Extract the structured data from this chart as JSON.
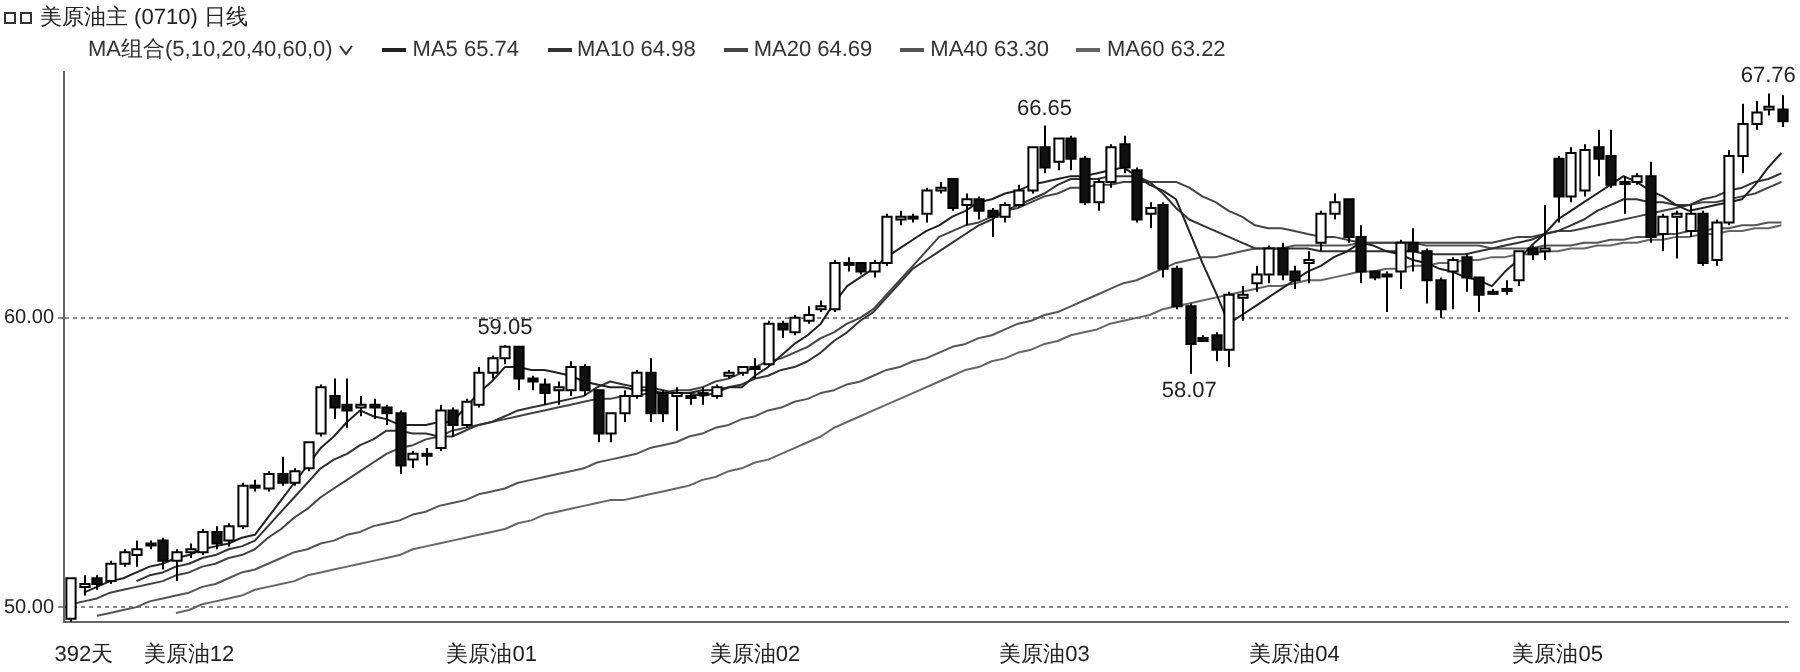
{
  "chart_data": {
    "type": "candlestick",
    "title": "美原油主 (0710) 日线",
    "subtitle": "MA组合(5,10,20,40,60,0)",
    "legend": "top left",
    "grid": "y",
    "categories": [
      null,
      "392天",
      null,
      null,
      null,
      null,
      null,
      null,
      null,
      "美原油12",
      null,
      null,
      null,
      null,
      null,
      null,
      null,
      null,
      null,
      null,
      null,
      null,
      null,
      null,
      null,
      null,
      null,
      null,
      null,
      null,
      null,
      null,
      "美原油01",
      null,
      null,
      null,
      null,
      null,
      null,
      null,
      null,
      null,
      null,
      null,
      null,
      null,
      null,
      null,
      null,
      null,
      null,
      null,
      "美原油02",
      null,
      null,
      null,
      null,
      null,
      null,
      null,
      null,
      null,
      null,
      null,
      null,
      null,
      null,
      null,
      null,
      null,
      null,
      null,
      null,
      null,
      "美原油03",
      null,
      null,
      null,
      null,
      null,
      null,
      null,
      null,
      null,
      null,
      null,
      null,
      null,
      null,
      null,
      null,
      null,
      null,
      "美原油04",
      null,
      null,
      null,
      null,
      null,
      null,
      null,
      null,
      null,
      null,
      null,
      null,
      null,
      null,
      null,
      null,
      null,
      null,
      null,
      "美原油05",
      null,
      null,
      null,
      null,
      null,
      null,
      null,
      null,
      null,
      null,
      null,
      null,
      null,
      null,
      null,
      null,
      null
    ],
    "ylim": [
      49.5,
      68.5
    ],
    "yticks": [
      {
        "value": 50,
        "label": "50.00"
      },
      {
        "value": 60,
        "label": "60.00"
      }
    ],
    "ohlc": [
      [
        49.6,
        51.0,
        49.5,
        51.0
      ],
      [
        50.7,
        51.1,
        50.4,
        50.8
      ],
      [
        51.0,
        51.1,
        50.6,
        50.8
      ],
      [
        50.9,
        51.6,
        50.8,
        51.5
      ],
      [
        51.5,
        52.0,
        51.4,
        51.9
      ],
      [
        51.8,
        52.3,
        51.4,
        52.0
      ],
      [
        52.2,
        52.3,
        52.0,
        52.2
      ],
      [
        52.3,
        52.4,
        51.3,
        51.6
      ],
      [
        51.6,
        52.0,
        50.9,
        51.9
      ],
      [
        51.9,
        52.2,
        51.7,
        52.0
      ],
      [
        51.9,
        52.7,
        51.8,
        52.6
      ],
      [
        52.6,
        52.8,
        52.0,
        52.2
      ],
      [
        52.3,
        52.9,
        52.1,
        52.8
      ],
      [
        52.8,
        54.3,
        52.7,
        54.2
      ],
      [
        54.2,
        54.4,
        54.0,
        54.2
      ],
      [
        54.1,
        54.7,
        54.0,
        54.6
      ],
      [
        54.6,
        55.2,
        54.2,
        54.3
      ],
      [
        54.3,
        54.8,
        54.2,
        54.7
      ],
      [
        54.8,
        55.7,
        54.7,
        55.7
      ],
      [
        56.0,
        57.7,
        55.9,
        57.6
      ],
      [
        57.3,
        57.9,
        56.5,
        56.9
      ],
      [
        57.0,
        57.9,
        56.2,
        56.8
      ],
      [
        56.9,
        57.3,
        56.6,
        57.0
      ],
      [
        57.0,
        57.2,
        56.5,
        56.9
      ],
      [
        56.9,
        57.0,
        56.3,
        56.7
      ],
      [
        56.7,
        56.8,
        54.6,
        54.9
      ],
      [
        55.1,
        55.4,
        54.8,
        55.3
      ],
      [
        55.3,
        55.5,
        54.9,
        55.3
      ],
      [
        55.5,
        57.0,
        55.4,
        56.8
      ],
      [
        56.8,
        56.9,
        55.9,
        56.3
      ],
      [
        56.3,
        57.2,
        56.2,
        57.1
      ],
      [
        57.0,
        58.3,
        56.9,
        58.1
      ],
      [
        58.1,
        58.7,
        57.9,
        58.6
      ],
      [
        58.6,
        59.05,
        58.4,
        59.0
      ],
      [
        59.0,
        59.0,
        57.5,
        57.9
      ],
      [
        57.9,
        58.0,
        57.5,
        57.8
      ],
      [
        57.7,
        57.9,
        57.0,
        57.4
      ],
      [
        57.5,
        57.8,
        57.0,
        57.6
      ],
      [
        57.5,
        58.5,
        57.3,
        58.3
      ],
      [
        58.3,
        58.4,
        57.3,
        57.5
      ],
      [
        57.5,
        57.5,
        55.7,
        56.0
      ],
      [
        56.0,
        56.7,
        55.7,
        56.7
      ],
      [
        56.7,
        57.5,
        56.4,
        57.3
      ],
      [
        57.3,
        58.2,
        57.2,
        58.1
      ],
      [
        58.1,
        58.6,
        56.4,
        56.7
      ],
      [
        57.4,
        57.5,
        56.4,
        56.7
      ],
      [
        57.3,
        57.6,
        56.1,
        57.4
      ],
      [
        57.3,
        57.4,
        57.0,
        57.3
      ],
      [
        57.4,
        57.6,
        57.0,
        57.4
      ],
      [
        57.3,
        57.7,
        57.2,
        57.6
      ],
      [
        58.0,
        58.2,
        57.9,
        58.1
      ],
      [
        58.1,
        58.3,
        58.0,
        58.3
      ],
      [
        58.3,
        58.6,
        57.9,
        58.3
      ],
      [
        58.4,
        59.9,
        58.3,
        59.8
      ],
      [
        59.8,
        59.9,
        59.3,
        59.6
      ],
      [
        59.5,
        60.1,
        59.4,
        60.0
      ],
      [
        59.9,
        60.4,
        59.8,
        60.1
      ],
      [
        60.3,
        60.6,
        60.2,
        60.4
      ],
      [
        60.3,
        62.0,
        60.2,
        61.9
      ],
      [
        61.9,
        62.1,
        61.6,
        61.9
      ],
      [
        61.9,
        61.9,
        61.5,
        61.6
      ],
      [
        61.6,
        62.0,
        61.4,
        61.9
      ],
      [
        61.9,
        63.6,
        61.8,
        63.5
      ],
      [
        63.4,
        63.7,
        63.2,
        63.5
      ],
      [
        63.5,
        63.6,
        63.3,
        63.5
      ],
      [
        63.6,
        64.5,
        63.3,
        64.4
      ],
      [
        64.4,
        64.7,
        64.3,
        64.5
      ],
      [
        64.8,
        64.8,
        63.7,
        63.8
      ],
      [
        63.9,
        64.3,
        63.2,
        64.1
      ],
      [
        64.1,
        64.2,
        63.4,
        63.7
      ],
      [
        63.7,
        63.8,
        62.8,
        63.5
      ],
      [
        63.5,
        64.0,
        63.3,
        63.9
      ],
      [
        63.9,
        64.6,
        63.8,
        64.4
      ],
      [
        64.4,
        65.9,
        64.3,
        65.9
      ],
      [
        65.9,
        66.65,
        65.0,
        65.2
      ],
      [
        65.4,
        66.2,
        65.1,
        66.2
      ],
      [
        66.2,
        66.3,
        65.1,
        65.5
      ],
      [
        65.5,
        65.6,
        63.9,
        64.0
      ],
      [
        64.0,
        64.8,
        63.7,
        64.7
      ],
      [
        64.7,
        66.0,
        64.5,
        65.9
      ],
      [
        66.0,
        66.3,
        65.0,
        65.2
      ],
      [
        65.1,
        65.2,
        63.3,
        63.4
      ],
      [
        63.6,
        64.0,
        63.1,
        63.8
      ],
      [
        63.9,
        64.0,
        61.4,
        61.7
      ],
      [
        61.7,
        61.8,
        60.3,
        60.4
      ],
      [
        60.4,
        60.5,
        58.07,
        59.1
      ],
      [
        59.3,
        59.4,
        59.2,
        59.2
      ],
      [
        59.4,
        59.5,
        58.5,
        58.9
      ],
      [
        58.9,
        60.9,
        58.3,
        60.8
      ],
      [
        60.7,
        61.1,
        59.9,
        60.8
      ],
      [
        61.2,
        61.8,
        60.9,
        61.5
      ],
      [
        61.5,
        62.5,
        61.2,
        62.4
      ],
      [
        62.4,
        62.6,
        61.3,
        61.5
      ],
      [
        61.6,
        61.8,
        61.0,
        61.3
      ],
      [
        61.9,
        62.3,
        61.2,
        62.0
      ],
      [
        62.6,
        63.7,
        62.3,
        63.6
      ],
      [
        63.6,
        64.3,
        63.4,
        64.0
      ],
      [
        64.1,
        64.1,
        62.6,
        62.8
      ],
      [
        62.8,
        63.2,
        61.2,
        61.6
      ],
      [
        61.6,
        61.6,
        61.3,
        61.4
      ],
      [
        61.5,
        61.6,
        60.2,
        61.5
      ],
      [
        61.6,
        62.7,
        61.0,
        62.6
      ],
      [
        62.6,
        63.1,
        61.6,
        62.3
      ],
      [
        62.3,
        62.4,
        60.5,
        61.3
      ],
      [
        61.3,
        61.4,
        60.0,
        60.3
      ],
      [
        61.6,
        62.1,
        60.3,
        62.0
      ],
      [
        62.1,
        62.2,
        60.9,
        61.4
      ],
      [
        61.4,
        61.4,
        60.2,
        60.8
      ],
      [
        60.9,
        61.0,
        60.8,
        60.9
      ],
      [
        61.0,
        61.3,
        60.8,
        61.0
      ],
      [
        61.3,
        62.3,
        61.1,
        62.3
      ],
      [
        62.4,
        62.5,
        62.0,
        62.2
      ],
      [
        62.3,
        63.9,
        62.0,
        62.4
      ],
      [
        65.5,
        65.6,
        63.3,
        64.2
      ],
      [
        64.2,
        65.9,
        64.0,
        65.7
      ],
      [
        64.4,
        66.0,
        64.2,
        65.8
      ],
      [
        65.9,
        66.5,
        64.9,
        65.5
      ],
      [
        65.6,
        66.5,
        64.5,
        64.6
      ],
      [
        64.7,
        64.9,
        63.6,
        64.7
      ],
      [
        64.7,
        65.0,
        64.6,
        64.9
      ],
      [
        64.9,
        65.4,
        62.6,
        62.8
      ],
      [
        62.9,
        63.6,
        62.3,
        63.5
      ],
      [
        63.5,
        63.7,
        62.05,
        63.6
      ],
      [
        63.0,
        63.9,
        62.8,
        63.6
      ],
      [
        63.6,
        63.7,
        61.8,
        61.9
      ],
      [
        62.0,
        63.4,
        61.8,
        63.3
      ],
      [
        63.3,
        65.8,
        63.2,
        65.6
      ],
      [
        65.6,
        67.4,
        65.0,
        66.7
      ],
      [
        66.7,
        67.5,
        66.5,
        67.1
      ],
      [
        67.2,
        67.76,
        67.0,
        67.3
      ],
      [
        67.2,
        67.7,
        66.6,
        66.8
      ]
    ],
    "series": [
      {
        "name": "MA5 65.74",
        "type": "line",
        "color": "#222222",
        "values": [
          null,
          50.5,
          50.7,
          50.9,
          51.0,
          51.2,
          51.4,
          51.5,
          51.7,
          51.8,
          52.0,
          52.1,
          52.2,
          52.4,
          52.5,
          53.1,
          53.7,
          54.3,
          54.9,
          55.5,
          55.9,
          56.4,
          56.8,
          56.6,
          56.5,
          56.3,
          56.3,
          56.3,
          56.4,
          56.4,
          56.9,
          57.4,
          57.8,
          58.3,
          58.3,
          58.2,
          58.2,
          58.1,
          58.0,
          57.8,
          57.7,
          57.6,
          57.6,
          57.5,
          57.5,
          57.4,
          57.4,
          57.4,
          57.5,
          57.5,
          57.6,
          57.6,
          58.0,
          58.3,
          58.7,
          59.1,
          59.4,
          59.8,
          60.5,
          61.1,
          61.4,
          61.7,
          62.1,
          62.4,
          62.7,
          63.0,
          63.2,
          63.5,
          63.7,
          64.0,
          64.1,
          64.3,
          64.4,
          64.6,
          64.7,
          64.8,
          64.9,
          64.9,
          65.0,
          65.1,
          65.2,
          64.9,
          64.6,
          64.4,
          64.1,
          63.0,
          61.9,
          60.9,
          59.8,
          60.1,
          60.4,
          60.7,
          61.0,
          61.3,
          61.6,
          61.8,
          62.1,
          62.3,
          62.6,
          62.5,
          62.3,
          62.2,
          62.0,
          61.9,
          61.7,
          61.6,
          61.4,
          61.3,
          61.1,
          61.6,
          62.0,
          62.5,
          62.9,
          63.4,
          63.7,
          64.0,
          64.3,
          64.6,
          64.9,
          64.7,
          64.4,
          64.2,
          63.9,
          63.7,
          63.8,
          63.9,
          64.0,
          64.1,
          64.6,
          65.2,
          65.7
        ]
      },
      {
        "name": "MA10 64.98",
        "type": "line",
        "color": "#333333",
        "values": [
          null,
          null,
          null,
          null,
          null,
          50.9,
          51.1,
          51.2,
          51.4,
          51.5,
          51.7,
          51.8,
          52.0,
          52.1,
          52.3,
          52.8,
          53.3,
          53.8,
          54.3,
          54.8,
          55.1,
          55.3,
          55.6,
          55.8,
          56.1,
          56.1,
          56.0,
          56.0,
          55.9,
          55.9,
          56.1,
          56.3,
          56.4,
          56.6,
          56.8,
          56.9,
          57.0,
          57.1,
          57.2,
          57.3,
          57.6,
          57.8,
          57.7,
          57.6,
          57.6,
          57.5,
          57.4,
          57.4,
          57.3,
          57.4,
          57.6,
          57.7,
          57.9,
          58.0,
          58.2,
          58.3,
          58.5,
          58.8,
          59.2,
          59.5,
          59.9,
          60.2,
          60.7,
          61.2,
          61.7,
          62.0,
          62.3,
          62.6,
          62.9,
          63.2,
          63.4,
          63.7,
          63.9,
          64.1,
          64.3,
          64.6,
          64.8,
          64.8,
          64.8,
          64.9,
          64.9,
          64.9,
          64.7,
          64.3,
          63.8,
          63.4,
          63.2,
          63.0,
          62.8,
          62.6,
          62.4,
          62.4,
          62.4,
          62.4,
          62.4,
          62.3,
          62.3,
          62.3,
          62.3,
          62.3,
          62.3,
          62.3,
          62.3,
          62.2,
          62.2,
          62.2,
          62.2,
          62.3,
          62.4,
          62.5,
          62.6,
          62.7,
          62.9,
          63.0,
          63.2,
          63.4,
          63.7,
          63.9,
          64.1,
          64.1,
          64.0,
          64.0,
          63.9,
          63.9,
          64.1,
          64.2,
          64.4,
          64.5,
          64.7,
          64.8,
          65.0
        ]
      },
      {
        "name": "MA20 64.69",
        "type": "line",
        "color": "#444444",
        "values": [
          50.1,
          50.2,
          50.3,
          50.5,
          50.6,
          50.7,
          50.8,
          50.9,
          51.1,
          51.2,
          51.4,
          51.5,
          51.7,
          51.8,
          52.0,
          52.4,
          52.7,
          53.1,
          53.4,
          53.8,
          54.1,
          54.4,
          54.7,
          55.0,
          55.3,
          55.5,
          55.6,
          55.8,
          55.9,
          56.1,
          56.2,
          56.3,
          56.4,
          56.5,
          56.6,
          56.7,
          56.8,
          56.9,
          57.0,
          57.1,
          57.2,
          57.2,
          57.3,
          57.3,
          57.4,
          57.4,
          57.5,
          57.5,
          57.6,
          57.8,
          57.9,
          58.1,
          58.3,
          58.5,
          58.6,
          58.8,
          59.0,
          59.3,
          59.5,
          59.8,
          60.0,
          60.3,
          60.8,
          61.3,
          61.8,
          62.3,
          62.8,
          63.0,
          63.2,
          63.3,
          63.5,
          63.7,
          63.8,
          64.0,
          64.2,
          64.3,
          64.5,
          64.5,
          64.6,
          64.6,
          64.7,
          64.7,
          64.7,
          64.7,
          64.7,
          64.5,
          64.2,
          64.0,
          63.7,
          63.5,
          63.2,
          63.1,
          63.1,
          63.0,
          62.9,
          62.8,
          62.8,
          62.7,
          62.6,
          62.6,
          62.6,
          62.6,
          62.6,
          62.6,
          62.6,
          62.6,
          62.6,
          62.6,
          62.6,
          62.7,
          62.8,
          62.8,
          62.9,
          63.0,
          63.0,
          63.1,
          63.2,
          63.3,
          63.4,
          63.5,
          63.6,
          63.7,
          63.8,
          63.9,
          64.0,
          64.0,
          64.1,
          64.2,
          64.3,
          64.5,
          64.7
        ]
      },
      {
        "name": "MA40 63.30",
        "type": "line",
        "color": "#555555",
        "values": [
          null,
          null,
          49.7,
          49.8,
          49.9,
          50.0,
          50.2,
          50.3,
          50.4,
          50.5,
          50.7,
          50.8,
          51.0,
          51.2,
          51.3,
          51.5,
          51.7,
          51.9,
          52.0,
          52.2,
          52.3,
          52.5,
          52.6,
          52.8,
          52.9,
          53.0,
          53.2,
          53.3,
          53.5,
          53.6,
          53.7,
          53.9,
          54.0,
          54.1,
          54.3,
          54.4,
          54.5,
          54.6,
          54.7,
          54.8,
          55.0,
          55.1,
          55.2,
          55.3,
          55.5,
          55.6,
          55.7,
          55.9,
          56.0,
          56.2,
          56.3,
          56.5,
          56.6,
          56.8,
          56.9,
          57.1,
          57.2,
          57.4,
          57.5,
          57.7,
          57.8,
          58.0,
          58.2,
          58.3,
          58.5,
          58.6,
          58.8,
          59.0,
          59.1,
          59.3,
          59.4,
          59.6,
          59.8,
          59.9,
          60.1,
          60.2,
          60.4,
          60.6,
          60.8,
          61.0,
          61.2,
          61.3,
          61.5,
          61.7,
          61.9,
          62.0,
          62.1,
          62.1,
          62.2,
          62.3,
          62.4,
          62.4,
          62.4,
          62.5,
          62.5,
          62.5,
          62.5,
          62.5,
          62.6,
          62.6,
          62.6,
          62.6,
          62.6,
          62.5,
          62.5,
          62.5,
          62.5,
          62.5,
          62.4,
          62.4,
          62.4,
          62.4,
          62.5,
          62.5,
          62.5,
          62.6,
          62.6,
          62.7,
          62.7,
          62.8,
          62.8,
          62.9,
          62.9,
          63.0,
          63.0,
          63.1,
          63.1,
          63.2,
          63.2,
          63.3,
          63.3
        ]
      },
      {
        "name": "MA60 63.22",
        "type": "line",
        "color": "#666666",
        "values": [
          null,
          null,
          null,
          null,
          null,
          null,
          null,
          null,
          49.8,
          49.9,
          50.1,
          50.2,
          50.3,
          50.4,
          50.6,
          50.7,
          50.8,
          50.9,
          51.1,
          51.2,
          51.3,
          51.4,
          51.5,
          51.6,
          51.7,
          51.8,
          52.0,
          52.1,
          52.2,
          52.3,
          52.4,
          52.5,
          52.6,
          52.7,
          52.9,
          53.0,
          53.2,
          53.3,
          53.4,
          53.5,
          53.6,
          53.7,
          53.7,
          53.8,
          53.9,
          54.0,
          54.1,
          54.2,
          54.4,
          54.5,
          54.7,
          54.8,
          55.0,
          55.1,
          55.3,
          55.5,
          55.7,
          55.9,
          56.2,
          56.4,
          56.6,
          56.8,
          57.0,
          57.2,
          57.4,
          57.6,
          57.8,
          58.0,
          58.2,
          58.3,
          58.5,
          58.6,
          58.8,
          58.9,
          59.1,
          59.2,
          59.4,
          59.5,
          59.6,
          59.8,
          59.9,
          60.0,
          60.1,
          60.3,
          60.4,
          60.5,
          60.6,
          60.7,
          60.8,
          60.9,
          61.0,
          61.1,
          61.1,
          61.2,
          61.3,
          61.3,
          61.4,
          61.5,
          61.6,
          61.6,
          61.7,
          61.7,
          61.8,
          61.8,
          61.9,
          61.9,
          62.0,
          62.0,
          62.1,
          62.1,
          62.2,
          62.2,
          62.3,
          62.3,
          62.4,
          62.4,
          62.5,
          62.5,
          62.6,
          62.6,
          62.7,
          62.7,
          62.8,
          62.8,
          62.9,
          62.9,
          63.0,
          63.0,
          63.1,
          63.1,
          63.2
        ]
      }
    ],
    "annotations": [
      {
        "text": "59.05",
        "y": 59.05
      },
      {
        "text": "66.65",
        "y": 66.65
      },
      {
        "text": "58.07",
        "y": 58.07
      },
      {
        "text": "67.76",
        "y": 67.76
      }
    ]
  }
}
